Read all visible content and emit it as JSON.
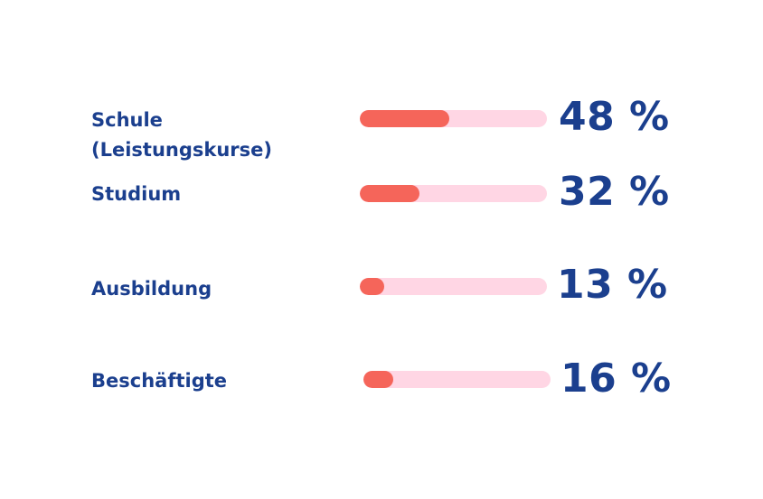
{
  "chart_data": {
    "type": "bar",
    "orientation": "horizontal",
    "categories": [
      "Schule (Leistungskurse)",
      "Studium",
      "Ausbildung",
      "Beschäftigte"
    ],
    "category_labels": [
      "Schule\n(Leistungskurse)",
      "Studium",
      "Ausbildung",
      "Beschäftigte"
    ],
    "values": [
      48,
      32,
      13,
      16
    ],
    "value_labels": [
      "48 %",
      "32 %",
      "13 %",
      "16 %"
    ],
    "xlim": [
      0,
      100
    ],
    "unit": "%",
    "grid": false,
    "legend": "none",
    "colors": {
      "fill": "#f5655a",
      "track": "#ffd6e4",
      "text": "#1b3f8e"
    }
  }
}
